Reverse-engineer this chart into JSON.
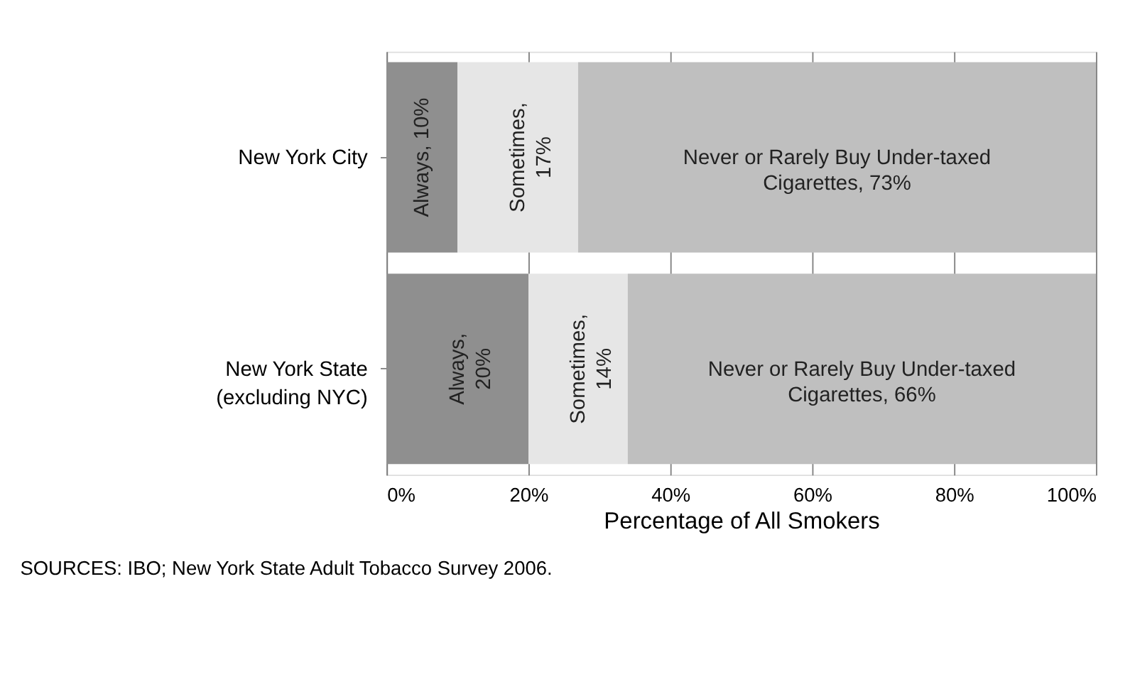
{
  "chart_data": {
    "type": "bar",
    "orientation": "horizontal",
    "stacked": true,
    "categories": [
      "New York City",
      "New York State\n(excluding NYC)"
    ],
    "series": [
      {
        "color": "#8f8f8f",
        "values": [
          10,
          20
        ],
        "value_labels": [
          "Always, 10%",
          "Always,\n20%"
        ]
      },
      {
        "color": "#e6e6e6",
        "values": [
          17,
          14
        ],
        "value_labels": [
          "Sometimes,\n17%",
          "Sometimes,\n14%"
        ]
      },
      {
        "color": "#bfbfbf",
        "values": [
          73,
          66
        ],
        "value_labels": [
          "Never or Rarely Buy Under-taxed\nCigarettes, 73%",
          "Never or Rarely Buy Under-taxed\nCigarettes, 66%"
        ]
      }
    ],
    "xlim": [
      0,
      100
    ],
    "xticks": [
      {
        "value": 0,
        "label": "0%"
      },
      {
        "value": 20,
        "label": "20%"
      },
      {
        "value": 40,
        "label": "40%"
      },
      {
        "value": 60,
        "label": "60%"
      },
      {
        "value": 80,
        "label": "80%"
      },
      {
        "value": 100,
        "label": "100%"
      }
    ],
    "xlabel": "Percentage of All Smokers",
    "grid": "x",
    "legend": false,
    "annotations": [
      "SOURCES: IBO; New York State Adult Tobacco Survey 2006."
    ]
  }
}
